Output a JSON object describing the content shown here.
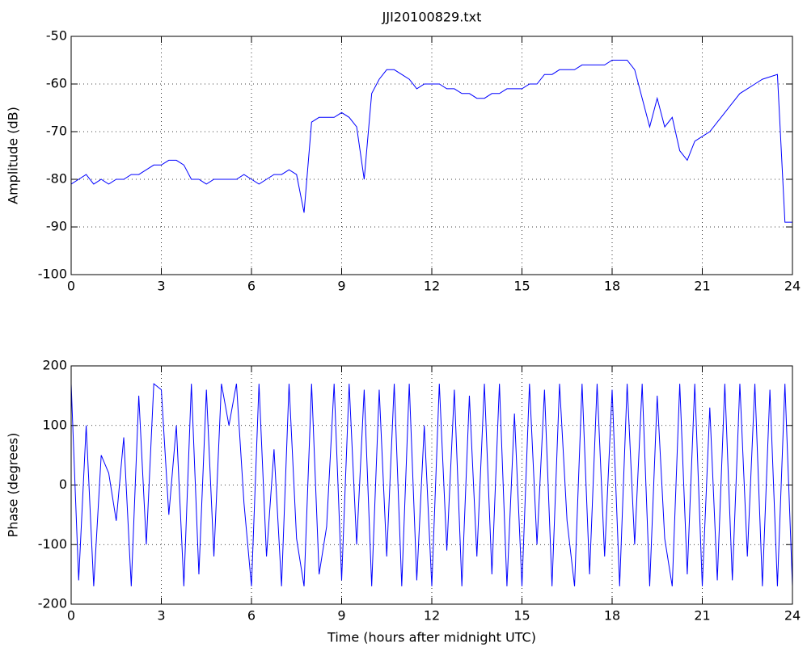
{
  "chart_data": [
    {
      "type": "line",
      "title": "JJI20100829.txt",
      "ylabel": "Amplitude (dB)",
      "x": [
        0,
        0.25,
        0.5,
        0.75,
        1,
        1.25,
        1.5,
        1.75,
        2,
        2.25,
        2.5,
        2.75,
        3,
        3.25,
        3.5,
        3.75,
        4,
        4.25,
        4.5,
        4.75,
        5,
        5.25,
        5.5,
        5.75,
        6,
        6.25,
        6.5,
        6.75,
        7,
        7.25,
        7.5,
        7.75,
        8,
        8.25,
        8.5,
        8.75,
        9,
        9.25,
        9.5,
        9.75,
        10,
        10.25,
        10.5,
        10.75,
        11,
        11.25,
        11.5,
        11.75,
        12,
        12.25,
        12.5,
        12.75,
        13,
        13.25,
        13.5,
        13.75,
        14,
        14.25,
        14.5,
        14.75,
        15,
        15.25,
        15.5,
        15.75,
        16,
        16.25,
        16.5,
        16.75,
        17,
        17.25,
        17.5,
        17.75,
        18,
        18.25,
        18.5,
        18.75,
        19,
        19.25,
        19.5,
        19.75,
        20,
        20.25,
        20.5,
        20.75,
        21,
        21.25,
        21.5,
        21.75,
        22,
        22.25,
        22.5,
        22.75,
        23,
        23.25,
        23.5,
        23.75,
        24
      ],
      "series": [
        {
          "color": "#0000ff",
          "values": [
            -81,
            -80,
            -79,
            -81,
            -80,
            -81,
            -80,
            -80,
            -79,
            -79,
            -78,
            -77,
            -77,
            -76,
            -76,
            -77,
            -80,
            -80,
            -81,
            -80,
            -80,
            -80,
            -80,
            -79,
            -80,
            -81,
            -80,
            -79,
            -79,
            -78,
            -79,
            -87,
            -68,
            -67,
            -67,
            -67,
            -66,
            -67,
            -69,
            -80,
            -62,
            -59,
            -57,
            -57,
            -58,
            -59,
            -61,
            -60,
            -60,
            -60,
            -61,
            -61,
            -62,
            -62,
            -63,
            -63,
            -62,
            -62,
            -61,
            -61,
            -61,
            -60,
            -60,
            -58,
            -58,
            -57,
            -57,
            -57,
            -56,
            -56,
            -56,
            -56,
            -55,
            -55,
            -55,
            -57,
            -63,
            -69,
            -63,
            -69,
            -67,
            -74,
            -76,
            -72,
            -71,
            -70,
            -68,
            -66,
            -64,
            -62,
            -61,
            -60,
            -59,
            -58.5,
            -58,
            -89,
            -89
          ]
        }
      ],
      "xlim": [
        0,
        24
      ],
      "xticks": [
        0,
        3,
        6,
        9,
        12,
        15,
        18,
        21,
        24
      ],
      "ylim": [
        -100,
        -50
      ],
      "yticks": [
        -100,
        -90,
        -80,
        -70,
        -60,
        -50
      ],
      "grid": true
    },
    {
      "type": "line",
      "xlabel": "Time (hours after midnight UTC)",
      "ylabel": "Phase (degrees)",
      "x": [
        0,
        0.25,
        0.5,
        0.75,
        1,
        1.25,
        1.5,
        1.75,
        2,
        2.25,
        2.5,
        2.75,
        3,
        3.25,
        3.5,
        3.75,
        4,
        4.25,
        4.5,
        4.75,
        5,
        5.25,
        5.5,
        5.75,
        6,
        6.25,
        6.5,
        6.75,
        7,
        7.25,
        7.5,
        7.75,
        8,
        8.25,
        8.5,
        8.75,
        9,
        9.25,
        9.5,
        9.75,
        10,
        10.25,
        10.5,
        10.75,
        11,
        11.25,
        11.5,
        11.75,
        12,
        12.25,
        12.5,
        12.75,
        13,
        13.25,
        13.5,
        13.75,
        14,
        14.25,
        14.5,
        14.75,
        15,
        15.25,
        15.5,
        15.75,
        16,
        16.25,
        16.5,
        16.75,
        17,
        17.25,
        17.5,
        17.75,
        18,
        18.25,
        18.5,
        18.75,
        19,
        19.25,
        19.5,
        19.75,
        20,
        20.25,
        20.5,
        20.75,
        21,
        21.25,
        21.5,
        21.75,
        22,
        22.25,
        22.5,
        22.75,
        23,
        23.25,
        23.5,
        23.75,
        24
      ],
      "series": [
        {
          "color": "#0000ff",
          "values": [
            170,
            -160,
            100,
            -170,
            50,
            20,
            -60,
            80,
            -170,
            150,
            -100,
            170,
            160,
            -50,
            100,
            -170,
            170,
            -150,
            160,
            -120,
            170,
            100,
            170,
            -30,
            -170,
            170,
            -120,
            60,
            -170,
            170,
            -90,
            -170,
            170,
            -150,
            -70,
            170,
            -160,
            170,
            -100,
            160,
            -170,
            160,
            -120,
            170,
            -170,
            170,
            -160,
            100,
            -170,
            170,
            -110,
            160,
            -170,
            150,
            -120,
            170,
            -150,
            170,
            -170,
            120,
            -170,
            170,
            -100,
            160,
            -170,
            170,
            -60,
            -170,
            170,
            -150,
            170,
            -120,
            160,
            -170,
            170,
            -100,
            170,
            -170,
            150,
            -90,
            -170,
            170,
            -150,
            170,
            -170,
            130,
            -160,
            170,
            -160,
            170,
            -120,
            170,
            -170,
            160,
            -170,
            170,
            -170
          ]
        }
      ],
      "xlim": [
        0,
        24
      ],
      "xticks": [
        0,
        3,
        6,
        9,
        12,
        15,
        18,
        21,
        24
      ],
      "ylim": [
        -200,
        200
      ],
      "yticks": [
        -200,
        -100,
        0,
        100,
        200
      ],
      "grid": true
    }
  ]
}
